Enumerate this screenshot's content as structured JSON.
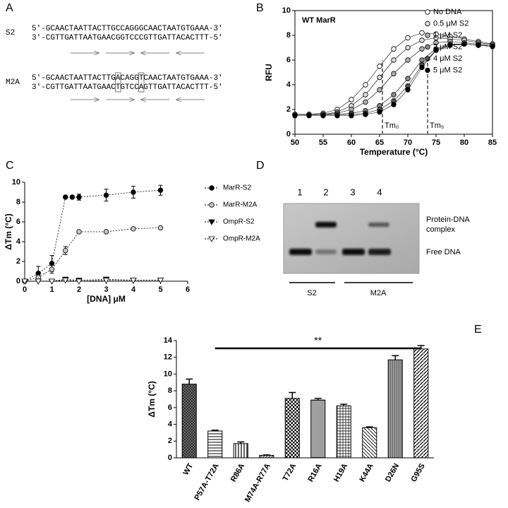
{
  "panel_labels": [
    "A",
    "B",
    "C",
    "D",
    "E"
  ],
  "sequences": [
    {
      "name": "S2",
      "top": "5′-GCAACTAATTACTTGCCAGGGCAACTAATGTGAAA-3′",
      "bottom": "3′-CGTTGATTAATGAACGGTCCCGTTGATTACACTTT-5′"
    },
    {
      "name": "M2A",
      "top": "5′-GCAACTAATTACTTGACAGGTCAACTAATGTGAAA-3′",
      "bottom": "3′-CGTTGATTAATGAACTGTCCAGTTGATTACACTTT-5′"
    }
  ],
  "gel": {
    "lanes": [
      "1",
      "2",
      "3",
      "4"
    ],
    "band_labels": [
      "Protein-DNA",
      "complex",
      "Free DNA"
    ],
    "groups": [
      "S2",
      "M2A"
    ]
  },
  "chart_data": [
    {
      "type": "line",
      "title": "WT MarR",
      "x_label": "Temperature (°C)",
      "y_label": "RFU",
      "x": [
        50,
        52.5,
        55,
        57.5,
        60,
        62.5,
        65,
        67.5,
        70,
        72.5,
        75,
        77.5,
        80,
        82.5,
        85
      ],
      "xlim": [
        50,
        85
      ],
      "xticks": [
        50,
        55,
        60,
        65,
        70,
        75,
        80,
        85
      ],
      "ylim": [
        0,
        10
      ],
      "yticks": [
        0,
        2,
        4,
        6,
        8,
        10
      ],
      "series": [
        {
          "name": "No DNA",
          "color": "#ffffff",
          "values": [
            1.6,
            1.6,
            1.7,
            2.0,
            2.8,
            4.0,
            5.5,
            6.9,
            7.8,
            8.2,
            8.1,
            7.9,
            7.7,
            7.5,
            7.3
          ]
        },
        {
          "name": "0.5 μM S2",
          "color": "#dddddd",
          "values": [
            1.6,
            1.6,
            1.6,
            1.8,
            2.3,
            3.2,
            4.6,
            6.0,
            7.0,
            7.6,
            7.8,
            7.7,
            7.6,
            7.4,
            7.3
          ]
        },
        {
          "name": "1 μM S2",
          "color": "#b0b0b0",
          "values": [
            1.6,
            1.6,
            1.6,
            1.7,
            2.0,
            2.6,
            3.6,
            4.9,
            6.0,
            6.9,
            7.4,
            7.5,
            7.4,
            7.3,
            7.2
          ]
        },
        {
          "name": "2 μM S2",
          "color": "#8a8a8a",
          "values": [
            1.6,
            1.6,
            1.6,
            1.6,
            1.7,
            1.9,
            2.3,
            3.2,
            4.5,
            6.0,
            6.9,
            7.3,
            7.3,
            7.2,
            7.2
          ]
        },
        {
          "name": "4 μM S2",
          "color": "#555555",
          "values": [
            1.6,
            1.6,
            1.6,
            1.6,
            1.6,
            1.7,
            2.0,
            2.7,
            3.9,
            5.6,
            6.8,
            7.2,
            7.3,
            7.2,
            7.1
          ]
        },
        {
          "name": "5 μM S2",
          "color": "#000000",
          "values": [
            1.5,
            1.5,
            1.5,
            1.5,
            1.5,
            1.6,
            1.8,
            2.4,
            3.6,
            5.4,
            6.8,
            7.2,
            7.3,
            7.2,
            7.1
          ]
        }
      ],
      "vlines": [
        {
          "x": 65.5,
          "label": "Tm₀"
        },
        {
          "x": 73.5,
          "label": "Tm₅"
        }
      ]
    },
    {
      "type": "scatter",
      "x_label": "[DNA] μM",
      "y_label": "ΔTm (°C)",
      "xlim": [
        0,
        6
      ],
      "xticks": [
        0,
        1,
        2,
        3,
        4,
        5,
        6
      ],
      "ylim": [
        0,
        10
      ],
      "yticks": [
        0,
        2,
        4,
        6,
        8,
        10
      ],
      "series": [
        {
          "name": "MarR-S2",
          "color": "#000000",
          "marker": "circle",
          "x": [
            0,
            0.5,
            1,
            1.5,
            1.75,
            2,
            3,
            4,
            5
          ],
          "values": [
            0,
            0.8,
            1.8,
            8.5,
            8.5,
            8.5,
            8.7,
            9.0,
            9.2
          ],
          "errors": [
            0,
            0.7,
            0.8,
            0.1,
            0.1,
            0.3,
            0.6,
            0.6,
            0.5
          ]
        },
        {
          "name": "MarR-M2A",
          "color": "#c8c8c8",
          "marker": "circle",
          "x": [
            0,
            0.5,
            1,
            1.5,
            2,
            3,
            4,
            5
          ],
          "values": [
            0,
            0.4,
            1.2,
            3.1,
            5.0,
            5.0,
            5.3,
            5.4
          ],
          "errors": [
            0,
            0.3,
            0.4,
            0.4,
            0.1,
            0.1,
            0.1,
            0.1
          ]
        },
        {
          "name": "OmpR-S2",
          "color": "#000000",
          "marker": "triangle-down",
          "x": [
            0,
            0.5,
            1,
            1.5,
            2,
            3,
            4,
            5
          ],
          "values": [
            0,
            0,
            0,
            0.2,
            0.1,
            0.2,
            0.1,
            0.1
          ]
        },
        {
          "name": "OmpR-M2A",
          "color": "#ffffff",
          "marker": "triangle-down",
          "x": [
            0,
            0.5,
            1,
            1.5,
            2,
            3,
            4,
            5
          ],
          "values": [
            0,
            0,
            0,
            0.1,
            0,
            0.1,
            0.1,
            0.1
          ]
        }
      ]
    },
    {
      "type": "bar",
      "y_label": "ΔTm (°C)",
      "annotation": "**",
      "categories": [
        "WT",
        "P57A-T72A",
        "R86A",
        "M74A-R77A",
        "T72A",
        "R16A",
        "H19A",
        "K44A",
        "D26N",
        "G95S"
      ],
      "values": [
        8.8,
        3.2,
        1.7,
        0.3,
        7.1,
        6.9,
        6.2,
        3.6,
        11.7,
        13.0
      ],
      "errors": [
        0.6,
        0.1,
        0.2,
        0.05,
        0.7,
        0.2,
        0.2,
        0.1,
        0.5,
        0.4
      ],
      "ylim": [
        0,
        14
      ],
      "yticks": [
        0,
        2,
        4,
        6,
        8,
        10,
        12,
        14
      ]
    }
  ]
}
